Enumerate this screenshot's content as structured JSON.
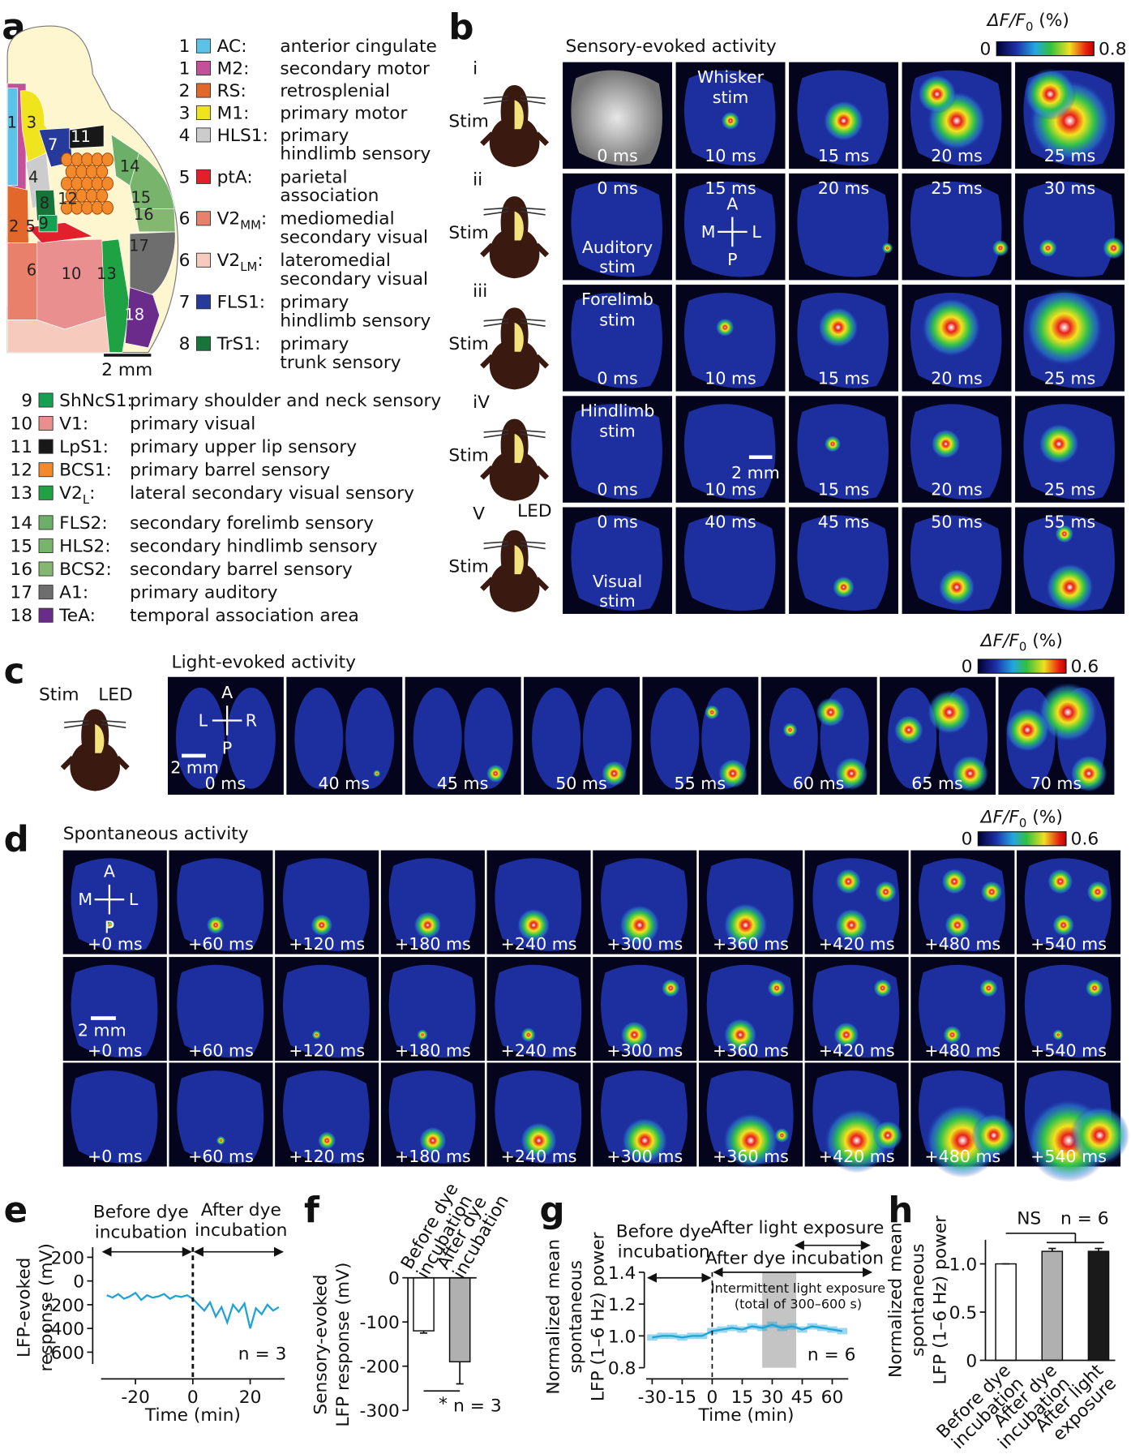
{
  "a": {
    "label": "a",
    "scale": "2 mm",
    "regions": [
      {
        "num": "1",
        "abbr": "AC:",
        "name": [
          "anterior cingulate"
        ],
        "color": "#5bc3e8"
      },
      {
        "num": "1",
        "abbr": "M2:",
        "name": [
          "secondary motor"
        ],
        "color": "#c4509a"
      },
      {
        "num": "2",
        "abbr": "RS:",
        "name": [
          "retrosplenial"
        ],
        "color": "#e2672a"
      },
      {
        "num": "3",
        "abbr": "M1:",
        "name": [
          "primary motor"
        ],
        "color": "#f0e41e"
      },
      {
        "num": "4",
        "abbr": "HLS1:",
        "name": [
          "primary",
          "hindlimb sensory"
        ],
        "color": "#cccccc"
      },
      {
        "num": "5",
        "abbr": "ptA:",
        "name": [
          "parietal",
          "association"
        ],
        "color": "#e2202c"
      },
      {
        "num": "6",
        "abbr": "V2",
        "sub": "MM",
        "suffix": ":",
        "name": [
          "mediomedial",
          "secondary visual"
        ],
        "color": "#e9806c"
      },
      {
        "num": "6",
        "abbr": "V2",
        "sub": "LM",
        "suffix": ":",
        "name": [
          "lateromedial",
          "secondary visual"
        ],
        "color": "#f6cabd"
      },
      {
        "num": "7",
        "abbr": "FLS1:",
        "name": [
          "primary",
          "hindlimb sensory"
        ],
        "color": "#263a9c"
      },
      {
        "num": "8",
        "abbr": "TrS1:",
        "name": [
          "primary",
          "trunk sensory"
        ],
        "color": "#17753a"
      },
      {
        "num": "9",
        "abbr": "ShNcS1:",
        "name": [
          "primary shoulder and neck sensory"
        ],
        "color": "#16a052"
      },
      {
        "num": "10",
        "abbr": "V1:",
        "name": [
          "primary visual"
        ],
        "color": "#e98f90"
      },
      {
        "num": "11",
        "abbr": "LpS1:",
        "name": [
          "primary upper lip sensory"
        ],
        "color": "#181818"
      },
      {
        "num": "12",
        "abbr": "BCS1:",
        "name": [
          "primary barrel sensory"
        ],
        "color": "#f28a2c"
      },
      {
        "num": "13",
        "abbr": "V2",
        "sub": "L",
        "suffix": ":",
        "name": [
          "lateral secondary visual sensory"
        ],
        "color": "#1fa244"
      },
      {
        "num": "14",
        "abbr": "FLS2:",
        "name": [
          "secondary forelimb sensory"
        ],
        "color": "#6caf68"
      },
      {
        "num": "15",
        "abbr": "HLS2:",
        "name": [
          "secondary hindlimb sensory"
        ],
        "color": "#78b46c"
      },
      {
        "num": "16",
        "abbr": "BCS2:",
        "name": [
          "secondary barrel sensory"
        ],
        "color": "#84b870"
      },
      {
        "num": "17",
        "abbr": "A1:",
        "name": [
          "primary auditory"
        ],
        "color": "#6e6e6e"
      },
      {
        "num": "18",
        "abbr": "TeA:",
        "name": [
          "temporal association area"
        ],
        "color": "#6b2b8b"
      }
    ]
  },
  "b": {
    "label": "b",
    "title": "Sensory-evoked activity",
    "cbar": {
      "label": "ΔF/F",
      "sub": "0",
      "unit": " (%)",
      "min": 0,
      "max": 0.8
    },
    "rows": [
      {
        "roman": "i",
        "stim": "Stim",
        "frames": [
          {
            "bottom": [
              "0 ms"
            ]
          },
          {
            "top": [
              "Whisker",
              "stim"
            ],
            "bottom": [
              "10 ms"
            ]
          },
          {
            "bottom": [
              "15 ms"
            ]
          },
          {
            "bottom": [
              "20 ms"
            ]
          },
          {
            "bottom": [
              "25 ms"
            ]
          }
        ]
      },
      {
        "roman": "ii",
        "stim": "Stim",
        "compass": [
          "A",
          "M",
          "L",
          "P"
        ],
        "frames": [
          {
            "top": [
              "0 ms"
            ],
            "bottom": [
              "Auditory",
              "stim"
            ]
          },
          {
            "top": [
              "15 ms"
            ]
          },
          {
            "top": [
              "20 ms"
            ]
          },
          {
            "top": [
              "25 ms"
            ]
          },
          {
            "top": [
              "30 ms"
            ]
          }
        ]
      },
      {
        "roman": "iii",
        "stim": "Stim",
        "frames": [
          {
            "top": [
              "Forelimb",
              "stim"
            ],
            "bottom": [
              "0 ms"
            ]
          },
          {
            "bottom": [
              "10 ms"
            ]
          },
          {
            "bottom": [
              "15 ms"
            ]
          },
          {
            "bottom": [
              "20 ms"
            ]
          },
          {
            "bottom": [
              "25 ms"
            ]
          }
        ]
      },
      {
        "roman": "iV",
        "stim": "Stim",
        "scale": "2 mm",
        "frames": [
          {
            "top": [
              "Hindlimb",
              "stim"
            ],
            "bottom": [
              "0 ms"
            ]
          },
          {
            "bottom": [
              "10 ms"
            ]
          },
          {
            "bottom": [
              "15 ms"
            ]
          },
          {
            "bottom": [
              "20 ms"
            ]
          },
          {
            "bottom": [
              "25 ms"
            ]
          }
        ]
      },
      {
        "roman": "V",
        "stim": "Stim",
        "led": "LED",
        "frames": [
          {
            "top": [
              "0 ms"
            ],
            "bottom": [
              "Visual",
              "stim"
            ]
          },
          {
            "top": [
              "40 ms"
            ]
          },
          {
            "top": [
              "45 ms"
            ]
          },
          {
            "top": [
              "50 ms"
            ]
          },
          {
            "top": [
              "55 ms"
            ]
          }
        ]
      }
    ]
  },
  "c": {
    "label": "c",
    "title": "Light-evoked activity",
    "cbar": {
      "label": "ΔF/F",
      "sub": "0",
      "unit": " (%)",
      "min": 0,
      "max": 0.6
    },
    "stim": "Stim",
    "led": "LED",
    "compass": [
      "A",
      "L",
      "R",
      "P"
    ],
    "scale": "2 mm",
    "times": [
      "0 ms",
      "40 ms",
      "45 ms",
      "50 ms",
      "55 ms",
      "60 ms",
      "65 ms",
      "70 ms"
    ]
  },
  "d": {
    "label": "d",
    "title": "Spontaneous activity",
    "cbar": {
      "label": "ΔF/F",
      "sub": "0",
      "unit": " (%)",
      "min": 0,
      "max": 0.6
    },
    "compass": [
      "A",
      "M",
      "L",
      "P"
    ],
    "scale": "2 mm",
    "rows": [
      [
        "+0 ms",
        "+60 ms",
        "+120 ms",
        "+180 ms",
        "+240 ms",
        "+300 ms",
        "+360 ms",
        "+420 ms",
        "+480 ms",
        "+540 ms"
      ],
      [
        "+0 ms",
        "+60 ms",
        "+120 ms",
        "+180 ms",
        "+240 ms",
        "+300 ms",
        "+360 ms",
        "+420 ms",
        "+480 ms",
        "+540 ms"
      ],
      [
        "+0 ms",
        "+60 ms",
        "+120 ms",
        "+180 ms",
        "+240 ms",
        "+300 ms",
        "+360 ms",
        "+420 ms",
        "+480 ms",
        "+540 ms"
      ]
    ]
  },
  "chart_data": [
    {
      "panel": "e",
      "type": "line",
      "y_label": [
        "LFP-evoked",
        "response (mV)"
      ],
      "x_label": "Time (min)",
      "annotations": {
        "before": [
          "Before dye",
          "incubation"
        ],
        "after": [
          "After dye",
          "incubation"
        ]
      },
      "n": "n = 3",
      "marker_x": 0,
      "xlim": [
        -32,
        32
      ],
      "xticks": [
        -20,
        0,
        20
      ],
      "ylim": [
        -700,
        285
      ],
      "yticks": [
        200,
        0,
        -200,
        -400,
        -600
      ],
      "x": [
        -30,
        -28,
        -26,
        -24,
        -22,
        -20,
        -18,
        -16,
        -14,
        -12,
        -10,
        -8,
        -6,
        -4,
        -2,
        0,
        2,
        4,
        6,
        8,
        10,
        12,
        14,
        16,
        18,
        20,
        22,
        24,
        26,
        28,
        30
      ],
      "series": [
        {
          "color": "#1fa3d6",
          "values": [
            -120,
            -140,
            -110,
            -150,
            -130,
            -100,
            -160,
            -120,
            -140,
            -130,
            -110,
            -150,
            -125,
            -135,
            -120,
            -150,
            -200,
            -250,
            -180,
            -300,
            -220,
            -350,
            -200,
            -260,
            -190,
            -400,
            -230,
            -280,
            -200,
            -250,
            -220
          ]
        }
      ]
    },
    {
      "panel": "f",
      "type": "bar",
      "y_label": [
        "Sensory-evoked",
        "LFP response (mV)"
      ],
      "categories": [
        [
          "Before dye",
          "incubation"
        ],
        [
          "After dye",
          "incubation"
        ]
      ],
      "values": [
        -120,
        -190
      ],
      "errors": [
        5,
        50
      ],
      "colors": [
        "#ffffff",
        "#b0b0b0"
      ],
      "ylim": [
        -300,
        0
      ],
      "yticks": [
        0,
        -100,
        -200,
        -300
      ],
      "significance": "*",
      "n": "n = 3"
    },
    {
      "panel": "g",
      "type": "line",
      "y_label": [
        "Normalized mean",
        "spontaneous",
        "LFP (1–6 Hz) power"
      ],
      "x_label": "Time (min)",
      "annotations": {
        "before": [
          "Before dye",
          "incubation"
        ],
        "light": "After light exposure",
        "dye": "After dye incubation",
        "intermittent": [
          "Intermittent light exposure",
          "(total of 300–600 s)"
        ]
      },
      "n": "n = 6",
      "marker_x": 0,
      "shade": [
        25,
        42
      ],
      "shade_color": "#c4c4c4",
      "xlim": [
        -33,
        68
      ],
      "xticks": [
        -30,
        -15,
        0,
        15,
        30,
        45,
        60
      ],
      "ylim": [
        0.8,
        1.4
      ],
      "yticks": [
        0.8,
        {
          "value": 1,
          "label": "1.0"
        },
        1.2,
        1.4
      ],
      "x": [
        -30,
        -25,
        -20,
        -15,
        -10,
        -5,
        0,
        5,
        10,
        15,
        20,
        25,
        30,
        35,
        40,
        45,
        50,
        55,
        60,
        65
      ],
      "series": [
        {
          "color": "#1fa3d6",
          "values": [
            0.99,
            1,
            1,
            0.99,
            1,
            1,
            1.03,
            1.04,
            1.05,
            1.04,
            1.06,
            1.05,
            1.07,
            1.05,
            1.06,
            1.04,
            1.06,
            1.05,
            1.04,
            1.03
          ],
          "errors": [
            0.02,
            0.02,
            0.02,
            0.02,
            0.02,
            0.02,
            0.02,
            0.02,
            0.02,
            0.02,
            0.02,
            0.02,
            0.02,
            0.02,
            0.02,
            0.02,
            0.02,
            0.02,
            0.02,
            0.02
          ]
        }
      ]
    },
    {
      "panel": "h",
      "type": "bar",
      "y_label": [
        "Normalized mean",
        "spontaneous",
        "LFP (1–6 Hz) power"
      ],
      "categories": [
        [
          "Before dye",
          "incubation"
        ],
        [
          "After dye",
          "incubation"
        ],
        [
          "After light",
          "exposure"
        ]
      ],
      "values": [
        1,
        1.13,
        1.13
      ],
      "errors": [
        0,
        0.03,
        0.03
      ],
      "colors": [
        "#ffffff",
        "#b0b0b0",
        "#1a1a1a"
      ],
      "ylim": [
        0,
        1.25
      ],
      "yticks": [
        0,
        0.5,
        {
          "value": 1,
          "label": "1.0"
        }
      ],
      "significance": "NS",
      "n": "n = 6"
    }
  ]
}
